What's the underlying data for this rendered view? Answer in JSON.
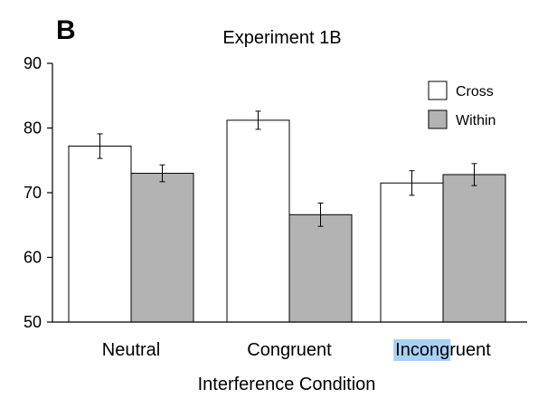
{
  "panel_label": "B",
  "chart_data": {
    "type": "bar",
    "title": "Experiment 1B",
    "xlabel": "Interference Condition",
    "ylabel": "",
    "categories": [
      "Neutral",
      "Congruent",
      "Incongruent"
    ],
    "highlighted_text": {
      "category_index": 2,
      "text": "Incong"
    },
    "series": [
      {
        "name": "Cross",
        "color": "#ffffff",
        "values": [
          77.2,
          81.2,
          71.5
        ],
        "errors": [
          1.9,
          1.4,
          1.9
        ]
      },
      {
        "name": "Within",
        "color": "#b3b3b3",
        "values": [
          73.0,
          66.6,
          72.8
        ],
        "errors": [
          1.3,
          1.8,
          1.7
        ]
      }
    ],
    "ylim": [
      50,
      90
    ],
    "yticks": [
      50,
      60,
      70,
      80,
      90
    ],
    "grid": false,
    "legend_position": "top-right",
    "highlight_color": "#a9d1f5"
  }
}
